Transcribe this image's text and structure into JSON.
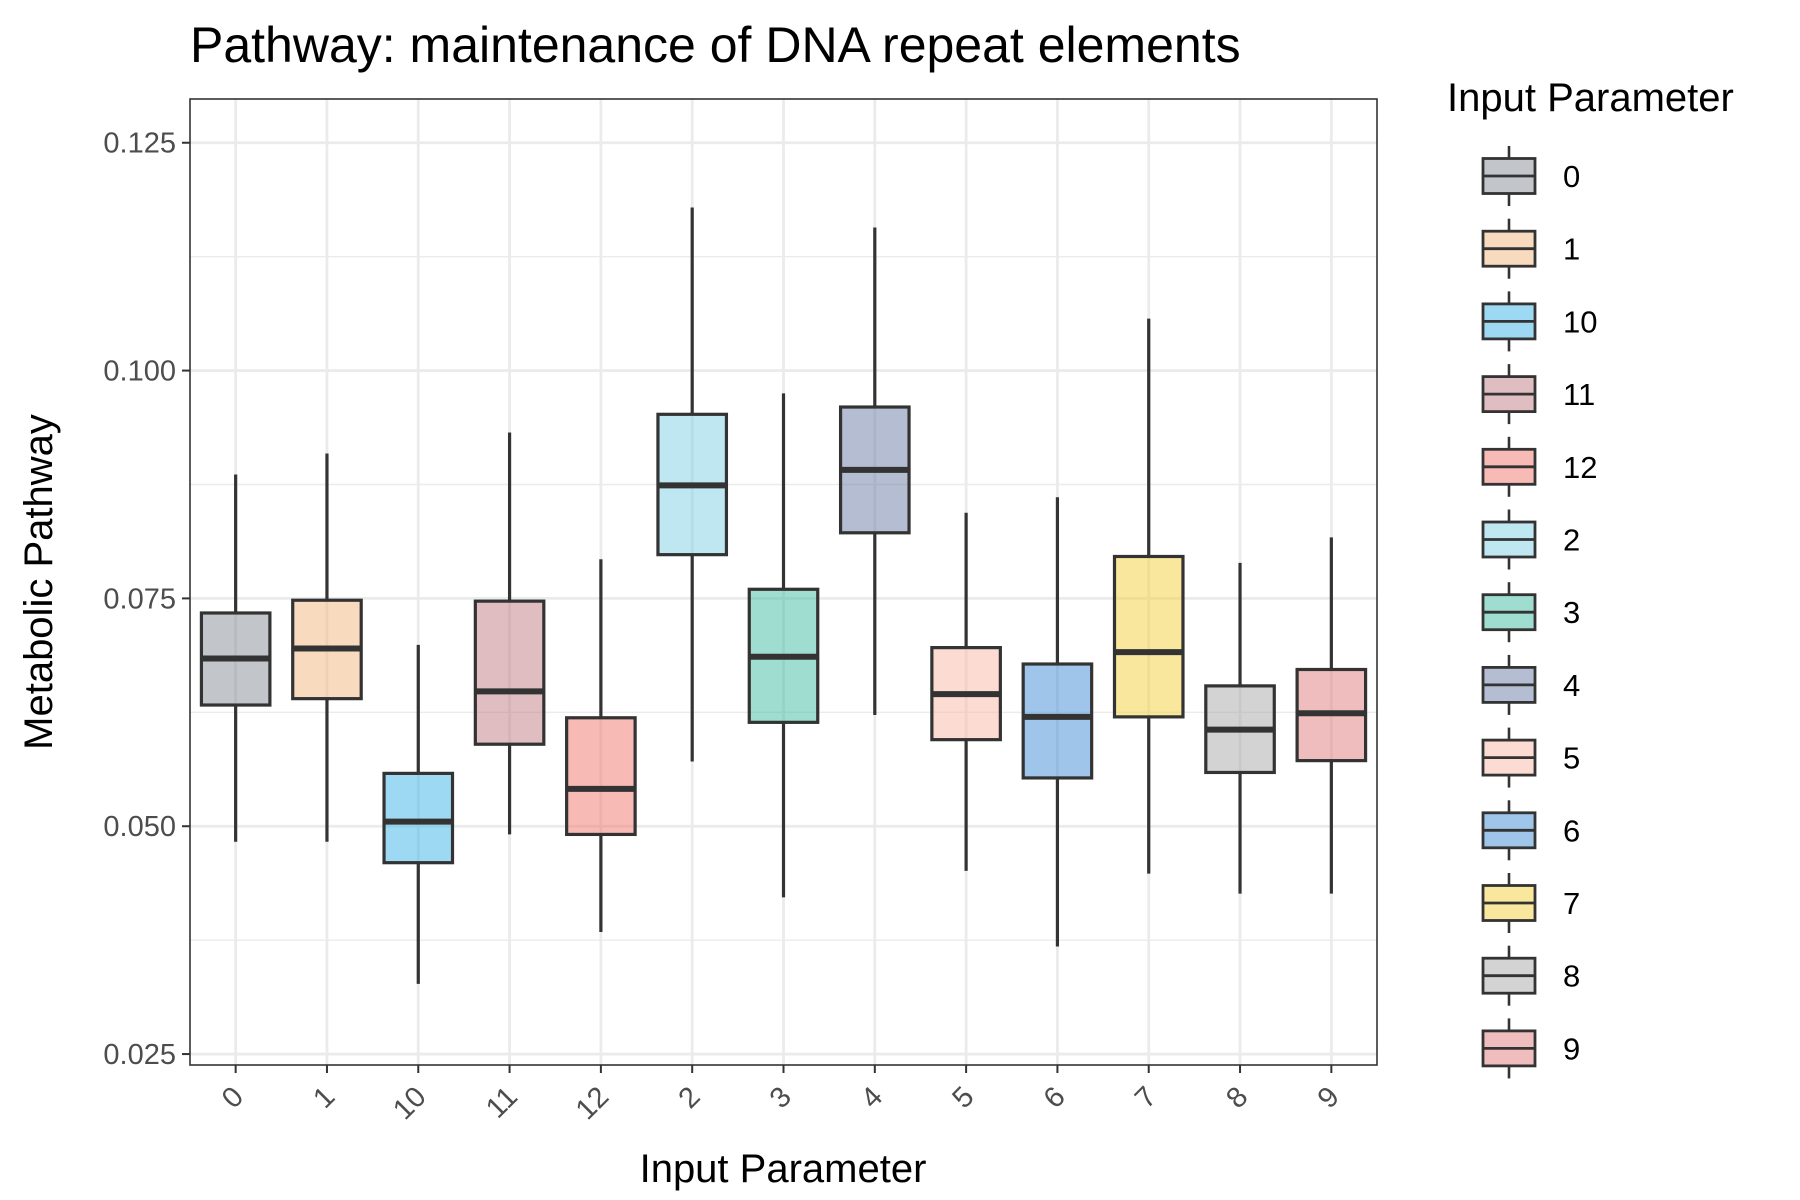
{
  "chart_data": {
    "type": "box",
    "title": "Pathway: maintenance of DNA repeat elements",
    "xlabel": "Input Parameter",
    "ylabel": "Metabolic Pathway",
    "ylim": [
      0.0238,
      0.1298
    ],
    "yticks": [
      0.025,
      0.05,
      0.075,
      0.1,
      0.125
    ],
    "ytick_labels": [
      "0.025",
      "0.050",
      "0.075",
      "0.100",
      "0.125"
    ],
    "grid": true,
    "legend": {
      "title": "Input Parameter",
      "position": "right",
      "entries": [
        "0",
        "1",
        "10",
        "11",
        "12",
        "2",
        "3",
        "4",
        "5",
        "6",
        "7",
        "8",
        "9"
      ]
    },
    "categories": [
      "0",
      "1",
      "10",
      "11",
      "12",
      "2",
      "3",
      "4",
      "5",
      "6",
      "7",
      "8",
      "9"
    ],
    "boxes": [
      {
        "category": "0",
        "min": 0.0483,
        "q1": 0.0633,
        "median": 0.0684,
        "q3": 0.0734,
        "max": 0.0886,
        "color": "#868E96"
      },
      {
        "category": "1",
        "min": 0.0483,
        "q1": 0.064,
        "median": 0.0695,
        "q3": 0.0748,
        "max": 0.0909,
        "color": "#F2B880"
      },
      {
        "category": "10",
        "min": 0.0327,
        "q1": 0.046,
        "median": 0.0505,
        "q3": 0.0558,
        "max": 0.0699,
        "color": "#3CB4E5"
      },
      {
        "category": "11",
        "min": 0.0491,
        "q1": 0.059,
        "median": 0.0648,
        "q3": 0.0747,
        "max": 0.0932,
        "color": "#C27C83"
      },
      {
        "category": "12",
        "min": 0.0384,
        "q1": 0.0491,
        "median": 0.0541,
        "q3": 0.0619,
        "max": 0.0793,
        "color": "#F2756A"
      },
      {
        "category": "2",
        "min": 0.0571,
        "q1": 0.0798,
        "median": 0.0874,
        "q3": 0.0952,
        "max": 0.1179,
        "color": "#7FD0E4"
      },
      {
        "category": "3",
        "min": 0.0422,
        "q1": 0.0614,
        "median": 0.0686,
        "q3": 0.076,
        "max": 0.0975,
        "color": "#3DBBA1"
      },
      {
        "category": "4",
        "min": 0.0622,
        "q1": 0.0822,
        "median": 0.0891,
        "q3": 0.096,
        "max": 0.1157,
        "color": "#6A7BA3"
      },
      {
        "category": "5",
        "min": 0.0451,
        "q1": 0.0595,
        "median": 0.0645,
        "q3": 0.0696,
        "max": 0.0844,
        "color": "#F7B7A6"
      },
      {
        "category": "6",
        "min": 0.0368,
        "q1": 0.0553,
        "median": 0.062,
        "q3": 0.0678,
        "max": 0.0861,
        "color": "#3F8ED6"
      },
      {
        "category": "7",
        "min": 0.0448,
        "q1": 0.062,
        "median": 0.0691,
        "q3": 0.0796,
        "max": 0.1057,
        "color": "#F2CF3A"
      },
      {
        "category": "8",
        "min": 0.0426,
        "q1": 0.0559,
        "median": 0.0606,
        "q3": 0.0654,
        "max": 0.0789,
        "color": "#A8A8A8"
      },
      {
        "category": "9",
        "min": 0.0426,
        "q1": 0.0572,
        "median": 0.0624,
        "q3": 0.0672,
        "max": 0.0817,
        "color": "#E07C7C"
      }
    ]
  }
}
